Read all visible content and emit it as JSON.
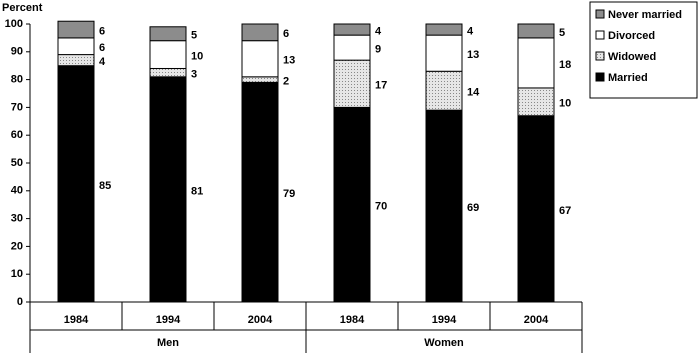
{
  "chart_data": {
    "type": "stacked-bar",
    "y_axis_label": "Percent",
    "categories": [
      "1984",
      "1994",
      "2004",
      "1984",
      "1994",
      "2004"
    ],
    "groups": [
      "Men",
      "Women"
    ],
    "series": [
      {
        "name": "Married",
        "color": "#000000",
        "values": [
          85,
          81,
          79,
          70,
          69,
          67
        ]
      },
      {
        "name": "Widowed",
        "color": "#d9d9d9",
        "values": [
          4,
          3,
          2,
          17,
          14,
          10
        ]
      },
      {
        "name": "Divorced",
        "color": "#ffffff",
        "values": [
          6,
          10,
          13,
          9,
          13,
          18
        ]
      },
      {
        "name": "Never married",
        "color": "#8c8c8c",
        "values": [
          6,
          5,
          6,
          4,
          4,
          5
        ]
      }
    ],
    "ylim": [
      0,
      100
    ],
    "yticks": [
      0,
      10,
      20,
      30,
      40,
      50,
      60,
      70,
      80,
      90,
      100
    ],
    "grid": false,
    "legend": "top-right"
  }
}
